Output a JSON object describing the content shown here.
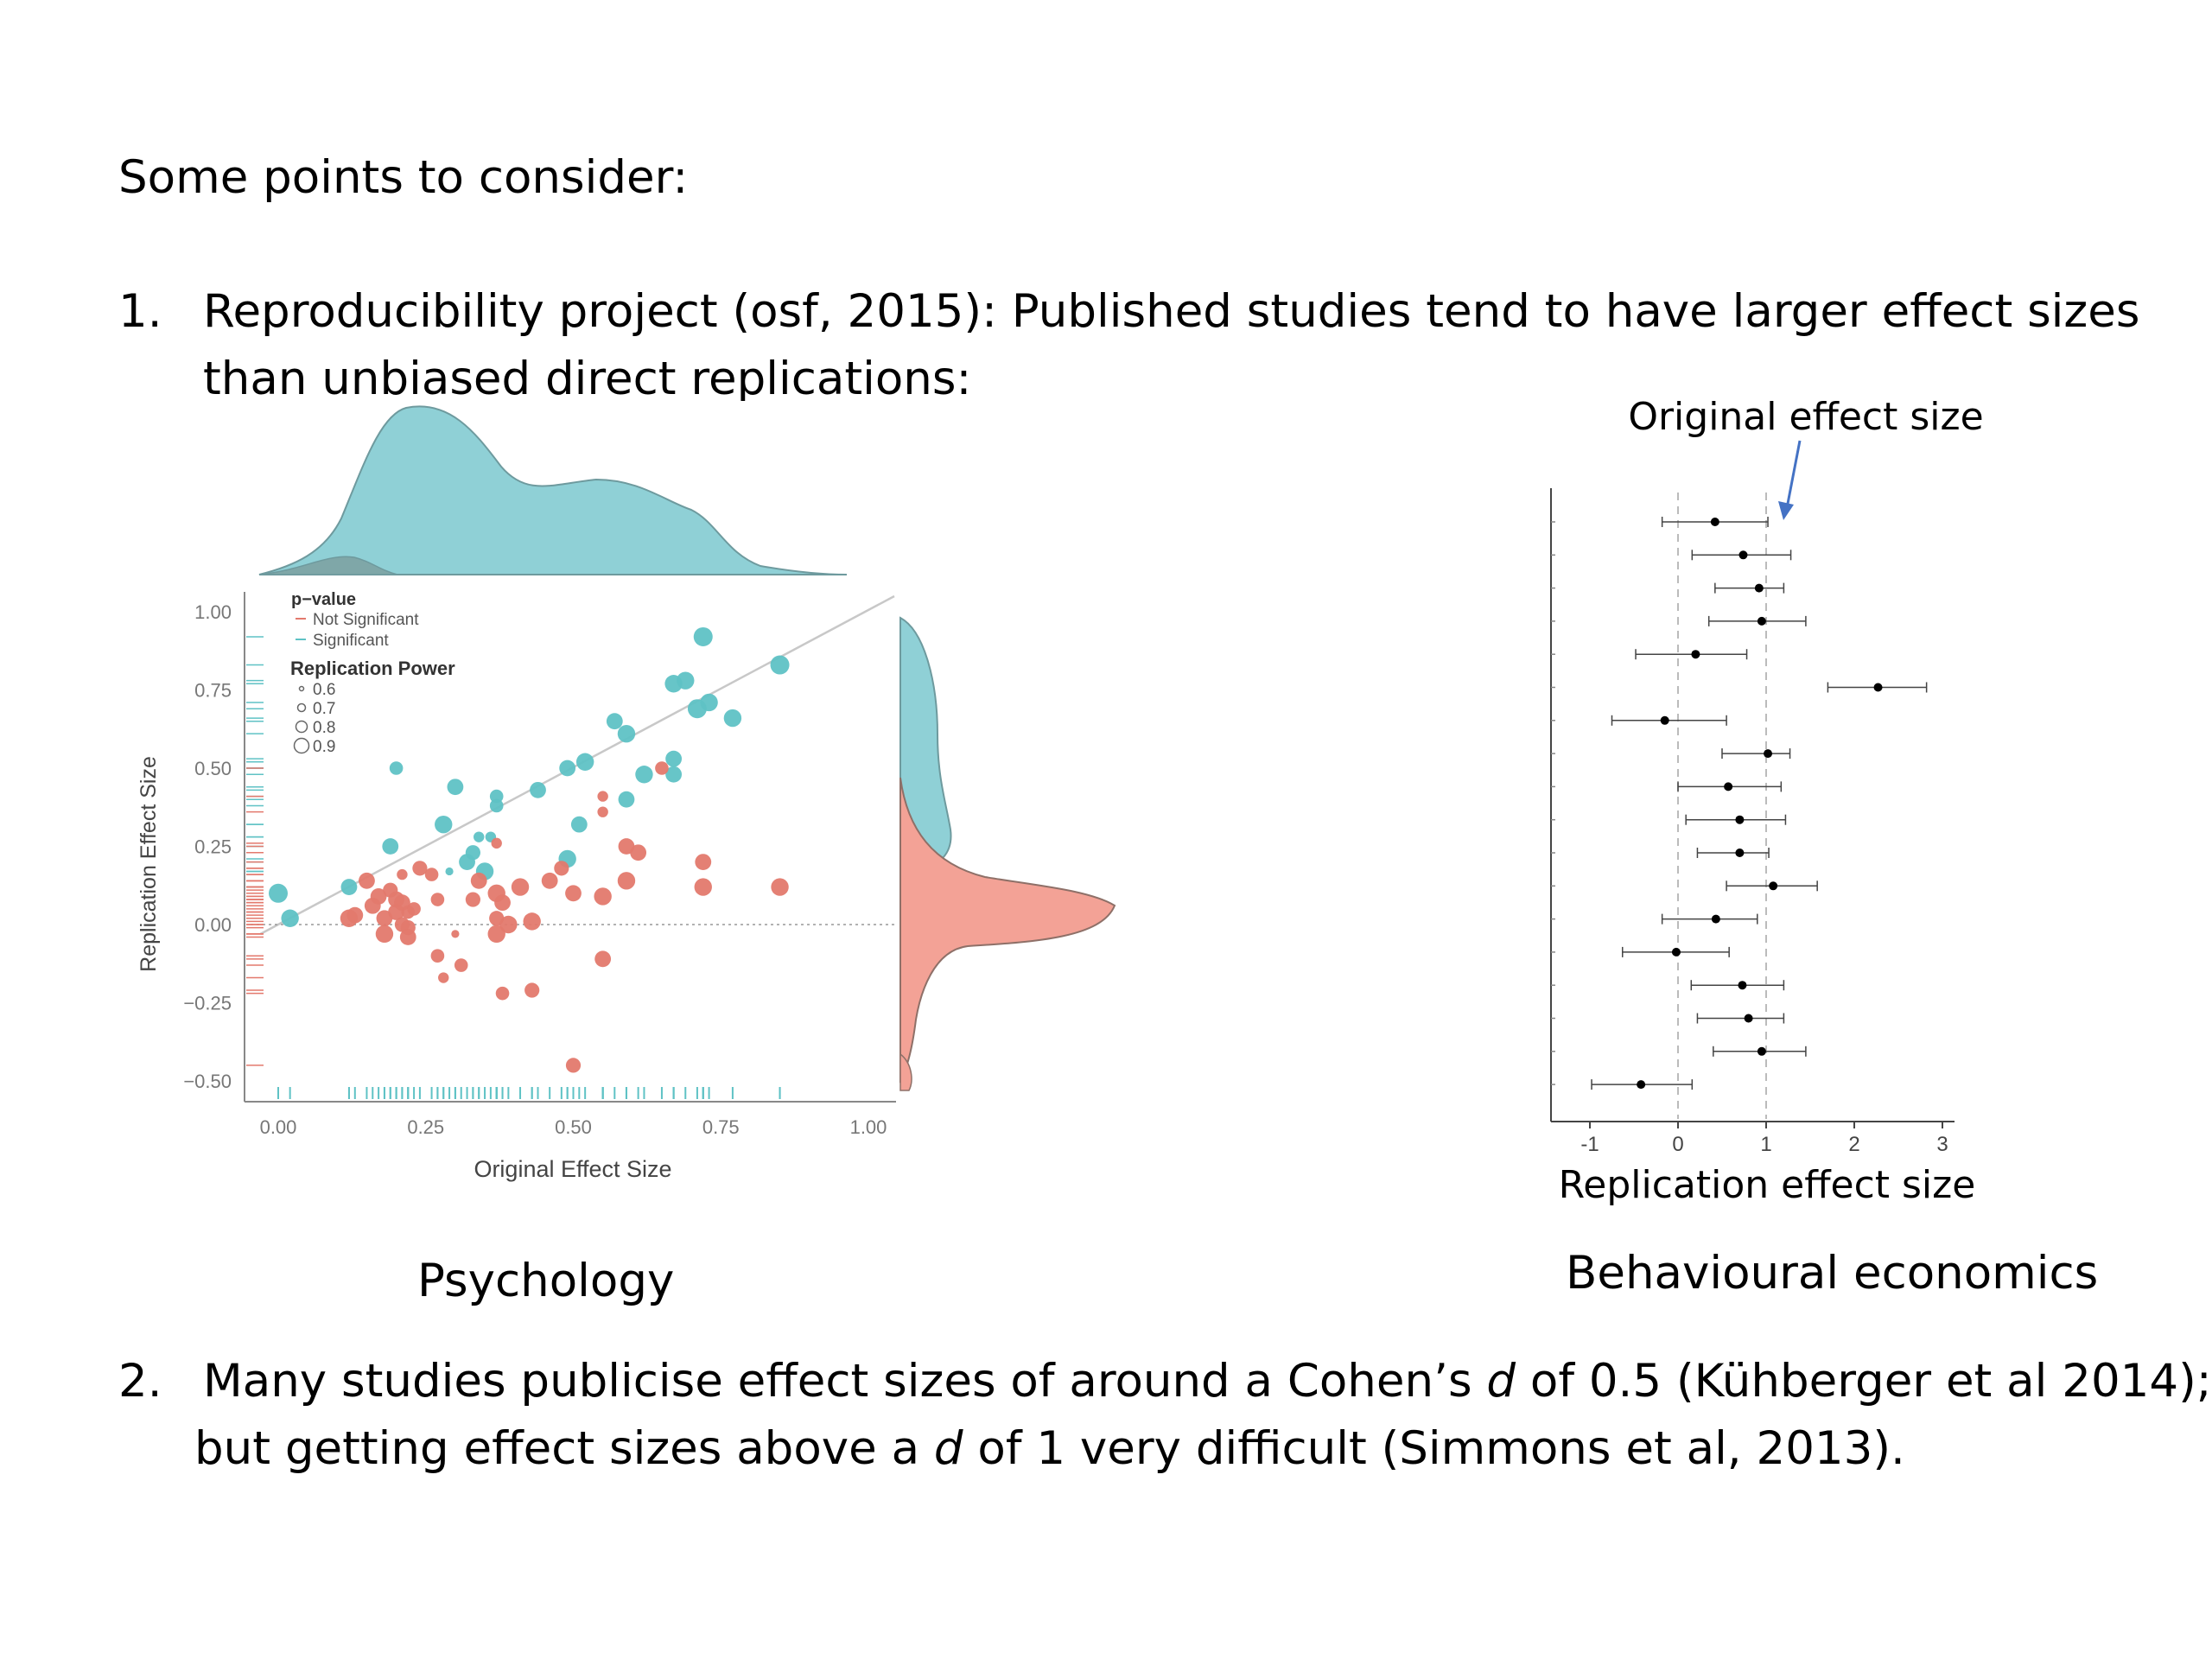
{
  "slide": {
    "heading": "Some points to consider:",
    "item1": {
      "number": "1.",
      "line1": "Reproducibility project (osf, 2015): Published studies tend to have larger effect sizes",
      "line2": "than unbiased direct replications:"
    },
    "caption_left": "Psychology",
    "caption_right": "Behavioural economics",
    "item2": {
      "number": "2.",
      "line1_a": "Many studies publicise effect sizes of around a Cohen’s ",
      "line1_d": "d",
      "line1_b": " of 0.5 (Kühberger et al 2014);",
      "line2_a": "but getting effect sizes above a ",
      "line2_d": "d",
      "line2_b": " of 1 very difficult (Simmons et al, 2013)."
    }
  },
  "colors": {
    "significant": "#5fc2c5",
    "not_significant": "#e3796d",
    "density_significant": "#8fd0d6",
    "density_not_significant": "#f3a296",
    "arrow": "#4472c4"
  },
  "chart_data": [
    {
      "type": "scatter",
      "title": "",
      "xlabel": "Original Effect Size",
      "ylabel": "Replication Effect Size",
      "xlim": [
        0.0,
        1.0
      ],
      "ylim": [
        -0.5,
        1.0
      ],
      "xticks": [
        "0.00",
        "0.25",
        "0.50",
        "0.75",
        "1.00"
      ],
      "yticks": [
        "1.00",
        "0.75",
        "0.50",
        "0.25",
        "0.00",
        "−0.25",
        "−0.50"
      ],
      "grid": false,
      "reference_lines": [
        "identity line y = x",
        "dotted line at y = 0"
      ],
      "legend": {
        "position": "top-left",
        "pvalue_title": "p−value",
        "pvalue_items": [
          "Not Significant",
          "Significant"
        ],
        "power_title": "Replication Power",
        "power_items": [
          "0.6",
          "0.7",
          "0.8",
          "0.9"
        ]
      },
      "marginals": "density plots on top (original) and right (replication), rug plots along both axes",
      "series": [
        {
          "name": "Significant",
          "points": [
            [
              0.0,
              0.1,
              0.9
            ],
            [
              0.02,
              0.02,
              0.85
            ],
            [
              0.12,
              0.12,
              0.8
            ],
            [
              0.19,
              0.25,
              0.8
            ],
            [
              0.2,
              0.5,
              0.7
            ],
            [
              0.28,
              0.32,
              0.85
            ],
            [
              0.29,
              0.17,
              0.5
            ],
            [
              0.3,
              0.44,
              0.8
            ],
            [
              0.32,
              0.2,
              0.8
            ],
            [
              0.33,
              0.23,
              0.75
            ],
            [
              0.34,
              0.28,
              0.6
            ],
            [
              0.35,
              0.17,
              0.85
            ],
            [
              0.36,
              0.28,
              0.6
            ],
            [
              0.37,
              0.41,
              0.7
            ],
            [
              0.37,
              0.38,
              0.7
            ],
            [
              0.44,
              0.43,
              0.8
            ],
            [
              0.49,
              0.5,
              0.8
            ],
            [
              0.49,
              0.21,
              0.85
            ],
            [
              0.51,
              0.32,
              0.8
            ],
            [
              0.52,
              0.52,
              0.85
            ],
            [
              0.57,
              0.65,
              0.8
            ],
            [
              0.59,
              0.61,
              0.85
            ],
            [
              0.59,
              0.4,
              0.8
            ],
            [
              0.62,
              0.48,
              0.85
            ],
            [
              0.67,
              0.53,
              0.8
            ],
            [
              0.67,
              0.48,
              0.8
            ],
            [
              0.67,
              0.77,
              0.85
            ],
            [
              0.69,
              0.78,
              0.85
            ],
            [
              0.71,
              0.69,
              0.9
            ],
            [
              0.72,
              0.92,
              0.9
            ],
            [
              0.73,
              0.71,
              0.85
            ],
            [
              0.77,
              0.66,
              0.85
            ],
            [
              0.85,
              0.83,
              0.9
            ]
          ]
        },
        {
          "name": "Not Significant",
          "points": [
            [
              0.12,
              0.02,
              0.85
            ],
            [
              0.13,
              0.03,
              0.8
            ],
            [
              0.15,
              0.14,
              0.8
            ],
            [
              0.16,
              0.06,
              0.8
            ],
            [
              0.17,
              0.09,
              0.8
            ],
            [
              0.18,
              0.02,
              0.8
            ],
            [
              0.18,
              -0.03,
              0.85
            ],
            [
              0.19,
              0.11,
              0.75
            ],
            [
              0.2,
              0.08,
              0.8
            ],
            [
              0.2,
              0.04,
              0.8
            ],
            [
              0.21,
              0.07,
              0.8
            ],
            [
              0.21,
              0.16,
              0.6
            ],
            [
              0.21,
              0.0,
              0.75
            ],
            [
              0.22,
              -0.01,
              0.75
            ],
            [
              0.22,
              0.04,
              0.7
            ],
            [
              0.22,
              -0.04,
              0.8
            ],
            [
              0.23,
              0.05,
              0.7
            ],
            [
              0.24,
              0.18,
              0.75
            ],
            [
              0.26,
              0.16,
              0.7
            ],
            [
              0.27,
              -0.1,
              0.7
            ],
            [
              0.27,
              0.08,
              0.7
            ],
            [
              0.28,
              -0.17,
              0.6
            ],
            [
              0.3,
              -0.03,
              0.5
            ],
            [
              0.31,
              -0.13,
              0.7
            ],
            [
              0.33,
              0.08,
              0.75
            ],
            [
              0.34,
              0.14,
              0.8
            ],
            [
              0.37,
              0.1,
              0.85
            ],
            [
              0.37,
              0.02,
              0.75
            ],
            [
              0.37,
              0.26,
              0.6
            ],
            [
              0.37,
              -0.03,
              0.85
            ],
            [
              0.38,
              0.07,
              0.8
            ],
            [
              0.38,
              -0.22,
              0.7
            ],
            [
              0.39,
              0.0,
              0.85
            ],
            [
              0.41,
              0.12,
              0.85
            ],
            [
              0.43,
              0.01,
              0.85
            ],
            [
              0.43,
              -0.21,
              0.75
            ],
            [
              0.46,
              0.14,
              0.8
            ],
            [
              0.48,
              0.18,
              0.75
            ],
            [
              0.5,
              0.1,
              0.8
            ],
            [
              0.5,
              -0.45,
              0.75
            ],
            [
              0.55,
              0.36,
              0.6
            ],
            [
              0.55,
              0.09,
              0.85
            ],
            [
              0.55,
              -0.11,
              0.8
            ],
            [
              0.55,
              0.41,
              0.6
            ],
            [
              0.59,
              0.25,
              0.8
            ],
            [
              0.59,
              0.14,
              0.85
            ],
            [
              0.61,
              0.23,
              0.8
            ],
            [
              0.65,
              0.5,
              0.7
            ],
            [
              0.72,
              0.12,
              0.85
            ],
            [
              0.72,
              0.2,
              0.8
            ],
            [
              0.85,
              0.12,
              0.85
            ]
          ]
        }
      ]
    },
    {
      "type": "scatter",
      "subtype": "forest plot with error bars",
      "title": "",
      "xlabel": "Replication effect size",
      "xlim": [
        -1.2,
        3.0
      ],
      "xticks": [
        "-1",
        "0",
        "1",
        "2",
        "3"
      ],
      "reference_lines": [
        0,
        1
      ],
      "annotation": "Original effect size",
      "points": [
        {
          "est": 0.42,
          "lo": -0.18,
          "hi": 1.02
        },
        {
          "est": 0.74,
          "lo": 0.16,
          "hi": 1.28
        },
        {
          "est": 0.92,
          "lo": 0.42,
          "hi": 1.2
        },
        {
          "est": 0.95,
          "lo": 0.35,
          "hi": 1.45
        },
        {
          "est": 0.2,
          "lo": -0.48,
          "hi": 0.78
        },
        {
          "est": 2.27,
          "lo": 1.7,
          "hi": 2.82
        },
        {
          "est": -0.15,
          "lo": -0.75,
          "hi": 0.55
        },
        {
          "est": 1.02,
          "lo": 0.5,
          "hi": 1.27
        },
        {
          "est": 0.57,
          "lo": 0.0,
          "hi": 1.17
        },
        {
          "est": 0.7,
          "lo": 0.09,
          "hi": 1.22
        },
        {
          "est": 0.7,
          "lo": 0.22,
          "hi": 1.03
        },
        {
          "est": 1.08,
          "lo": 0.55,
          "hi": 1.58
        },
        {
          "est": 0.43,
          "lo": -0.18,
          "hi": 0.9
        },
        {
          "est": -0.02,
          "lo": -0.63,
          "hi": 0.58
        },
        {
          "est": 0.73,
          "lo": 0.15,
          "hi": 1.2
        },
        {
          "est": 0.8,
          "lo": 0.22,
          "hi": 1.2
        },
        {
          "est": 0.95,
          "lo": 0.4,
          "hi": 1.45
        },
        {
          "est": -0.42,
          "lo": -0.98,
          "hi": 0.16
        }
      ]
    }
  ]
}
